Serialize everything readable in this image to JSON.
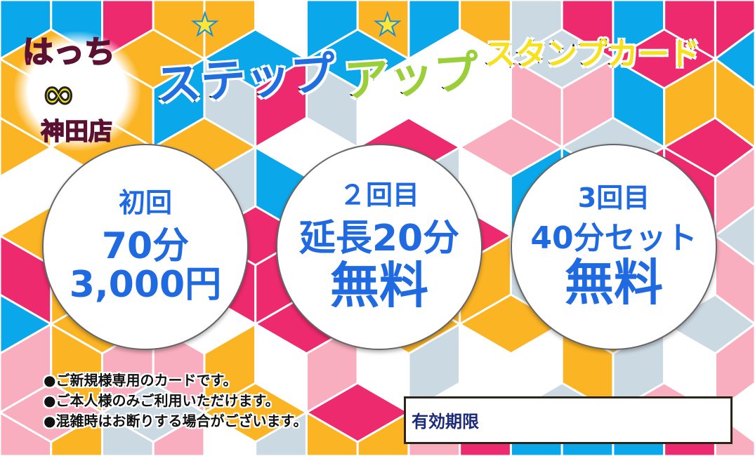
{
  "palette": [
    "#ee2a6e",
    "#0aa7ea",
    "#fbb424",
    "#f9aebf",
    "#cbd9e2",
    "#ffffff"
  ],
  "logo": {
    "name": "はっち",
    "infinity": "∞",
    "branch": "神田店"
  },
  "title": {
    "part1": "ステップ",
    "part2": "アップ",
    "part3": "スタンプカード",
    "star_icon": "star"
  },
  "stamps": [
    {
      "label": "初回",
      "line1": "70分",
      "line2": "3,000円"
    },
    {
      "label": "２回目",
      "line1": "延長20分",
      "line2": "無料"
    },
    {
      "label": "3回目",
      "line1": "40分セット",
      "line2": "無料"
    }
  ],
  "notes": [
    "●ご新規様専用のカードです。",
    "●ご本人様のみご利用いただけます。",
    "●混雑時はお断りする場合がございます。"
  ],
  "expiry": {
    "label": "有効期限"
  }
}
